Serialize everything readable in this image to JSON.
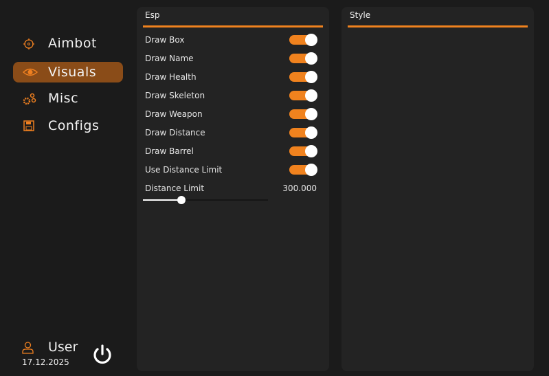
{
  "sidebar": {
    "items": [
      {
        "label": "Aimbot",
        "icon": "crosshair-icon",
        "active": false
      },
      {
        "label": "Visuals",
        "icon": "eye-icon",
        "active": true
      },
      {
        "label": "Misc",
        "icon": "gears-icon",
        "active": false
      },
      {
        "label": "Configs",
        "icon": "floppy-disk-icon",
        "active": false
      }
    ],
    "user": {
      "name": "User",
      "date": "17.12.2025",
      "icon": "user-icon"
    },
    "power_icon": "power-icon"
  },
  "esp": {
    "title": "Esp",
    "toggles": [
      {
        "label": "Draw Box",
        "on": true
      },
      {
        "label": "Draw Name",
        "on": true
      },
      {
        "label": "Draw Health",
        "on": true
      },
      {
        "label": "Draw Skeleton",
        "on": true
      },
      {
        "label": "Draw Weapon",
        "on": true
      },
      {
        "label": "Draw Distance",
        "on": true
      },
      {
        "label": "Draw Barrel",
        "on": true
      },
      {
        "label": "Use Distance Limit",
        "on": true
      }
    ],
    "distance_limit": {
      "label": "Distance Limit",
      "value": "300.000",
      "fraction": 0.31
    }
  },
  "style": {
    "title": "Style"
  },
  "colors": {
    "accent": "#f0821e",
    "active_bg": "#8a4c18"
  }
}
